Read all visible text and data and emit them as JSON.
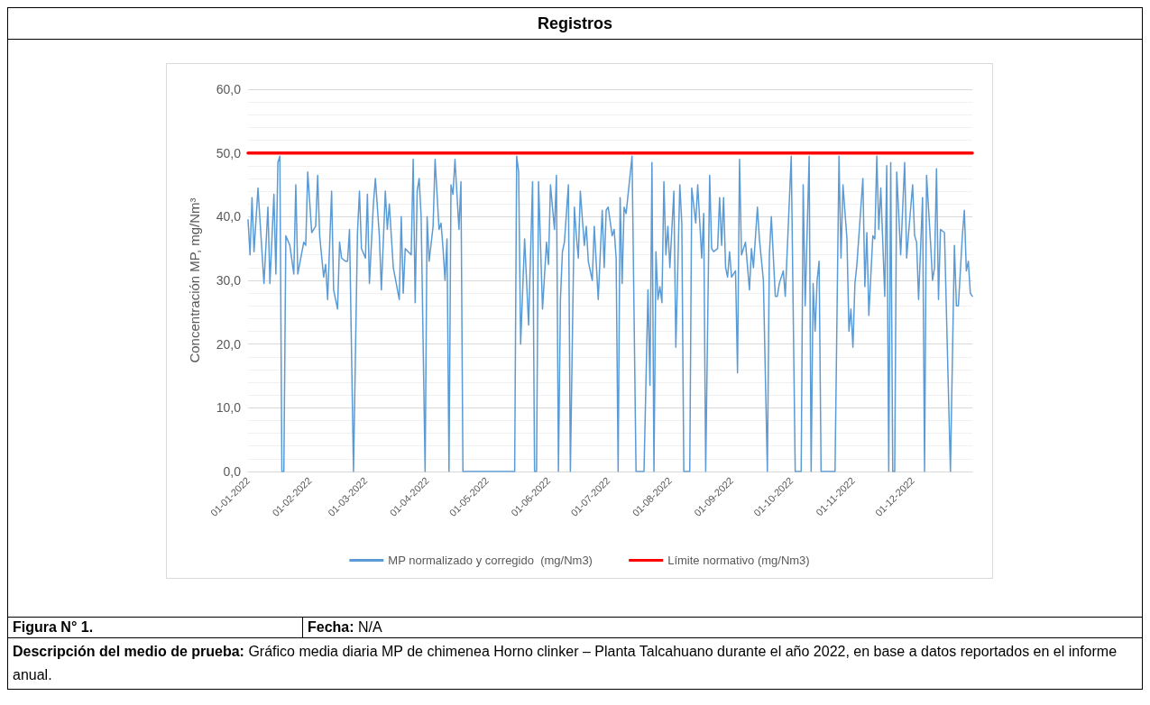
{
  "chart_data": {
    "type": "line",
    "title": "Registros",
    "ylabel": "Concentración MP, mg/Nm³",
    "annotations": [
      "Figura N° 1.",
      "Fecha: N/A",
      "Descripción del medio de prueba: Gráfico media diaria MP de chimenea Horno clinker – Planta Talcahuano durante el año 2022, en base a datos reportados en el informe anual."
    ],
    "xlim": [
      "2022-01-01",
      "2022-12-31"
    ],
    "xticks": [
      {
        "value": "2022-01-01",
        "label": "01-01-2022"
      },
      {
        "value": "2022-02-01",
        "label": "01-02-2022"
      },
      {
        "value": "2022-03-01",
        "label": "01-03-2022"
      },
      {
        "value": "2022-04-01",
        "label": "01-04-2022"
      },
      {
        "value": "2022-05-01",
        "label": "01-05-2022"
      },
      {
        "value": "2022-06-01",
        "label": "01-06-2022"
      },
      {
        "value": "2022-07-01",
        "label": "01-07-2022"
      },
      {
        "value": "2022-08-01",
        "label": "01-08-2022"
      },
      {
        "value": "2022-09-01",
        "label": "01-09-2022"
      },
      {
        "value": "2022-10-01",
        "label": "01-10-2022"
      },
      {
        "value": "2022-11-01",
        "label": "01-11-2022"
      },
      {
        "value": "2022-12-01",
        "label": "01-12-2022"
      }
    ],
    "ylim": [
      0,
      60
    ],
    "yticks": [
      {
        "value": 0,
        "label": "0,0"
      },
      {
        "value": 10,
        "label": "10,0"
      },
      {
        "value": 20,
        "label": "20,0"
      },
      {
        "value": 30,
        "label": "30,0"
      },
      {
        "value": 40,
        "label": "40,0"
      },
      {
        "value": 50,
        "label": "50,0"
      },
      {
        "value": 60,
        "label": "60,0"
      }
    ],
    "grid": "y",
    "legend": "bottom",
    "marker": "none",
    "line_style": "solid",
    "series": [
      {
        "name": "MP normalizado y corregido  (mg/Nm3)",
        "color": "#5b9bd5",
        "x": [
          "2022-01-01",
          "2022-01-02",
          "2022-01-03",
          "2022-01-04",
          "2022-01-06",
          "2022-01-09",
          "2022-01-11",
          "2022-01-12",
          "2022-01-14",
          "2022-01-15",
          "2022-01-16",
          "2022-01-17",
          "2022-01-18",
          "2022-01-19",
          "2022-01-20",
          "2022-01-22",
          "2022-01-24",
          "2022-01-25",
          "2022-01-26",
          "2022-01-29",
          "2022-01-30",
          "2022-01-31",
          "2022-02-02",
          "2022-02-04",
          "2022-02-05",
          "2022-02-06",
          "2022-02-08",
          "2022-02-09",
          "2022-02-10",
          "2022-02-12",
          "2022-02-13",
          "2022-02-15",
          "2022-02-16",
          "2022-02-17",
          "2022-02-19",
          "2022-02-20",
          "2022-02-21",
          "2022-02-23",
          "2022-02-25",
          "2022-02-26",
          "2022-02-27",
          "2022-03-01",
          "2022-03-02",
          "2022-03-03",
          "2022-03-05",
          "2022-03-06",
          "2022-03-08",
          "2022-03-09",
          "2022-03-11",
          "2022-03-12",
          "2022-03-13",
          "2022-03-15",
          "2022-03-18",
          "2022-03-19",
          "2022-03-20",
          "2022-03-21",
          "2022-03-24",
          "2022-03-25",
          "2022-03-26",
          "2022-03-27",
          "2022-03-28",
          "2022-03-29",
          "2022-03-31",
          "2022-04-01",
          "2022-04-02",
          "2022-04-04",
          "2022-04-05",
          "2022-04-07",
          "2022-04-08",
          "2022-04-09",
          "2022-04-10",
          "2022-04-11",
          "2022-04-12",
          "2022-04-13",
          "2022-04-14",
          "2022-04-15",
          "2022-04-17",
          "2022-04-18",
          "2022-04-19",
          "2022-05-15",
          "2022-05-16",
          "2022-05-17",
          "2022-05-18",
          "2022-05-20",
          "2022-05-22",
          "2022-05-24",
          "2022-05-25",
          "2022-05-26",
          "2022-05-27",
          "2022-05-29",
          "2022-05-31",
          "2022-06-01",
          "2022-06-02",
          "2022-06-04",
          "2022-06-05",
          "2022-06-06",
          "2022-06-07",
          "2022-06-08",
          "2022-06-09",
          "2022-06-11",
          "2022-06-12",
          "2022-06-14",
          "2022-06-15",
          "2022-06-16",
          "2022-06-17",
          "2022-06-19",
          "2022-06-20",
          "2022-06-21",
          "2022-06-23",
          "2022-06-24",
          "2022-06-26",
          "2022-06-28",
          "2022-06-29",
          "2022-06-30",
          "2022-07-01",
          "2022-07-03",
          "2022-07-04",
          "2022-07-05",
          "2022-07-06",
          "2022-07-07",
          "2022-07-08",
          "2022-07-09",
          "2022-07-10",
          "2022-07-13",
          "2022-07-15",
          "2022-07-19",
          "2022-07-21",
          "2022-07-22",
          "2022-07-23",
          "2022-07-24",
          "2022-07-25",
          "2022-07-26",
          "2022-07-27",
          "2022-07-28",
          "2022-07-29",
          "2022-07-30",
          "2022-07-31",
          "2022-08-01",
          "2022-08-03",
          "2022-08-04",
          "2022-08-06",
          "2022-08-07",
          "2022-08-08",
          "2022-08-11",
          "2022-08-12",
          "2022-08-14",
          "2022-08-15",
          "2022-08-17",
          "2022-08-18",
          "2022-08-19",
          "2022-08-21",
          "2022-08-22",
          "2022-08-23",
          "2022-08-25",
          "2022-08-26",
          "2022-08-27",
          "2022-08-28",
          "2022-08-29",
          "2022-08-30",
          "2022-08-31",
          "2022-09-01",
          "2022-09-03",
          "2022-09-04",
          "2022-09-05",
          "2022-09-06",
          "2022-09-08",
          "2022-09-10",
          "2022-09-11",
          "2022-09-12",
          "2022-09-14",
          "2022-09-15",
          "2022-09-17",
          "2022-09-19",
          "2022-09-20",
          "2022-09-21",
          "2022-09-23",
          "2022-09-24",
          "2022-09-25",
          "2022-09-27",
          "2022-09-28",
          "2022-10-01",
          "2022-10-03",
          "2022-10-06",
          "2022-10-07",
          "2022-10-08",
          "2022-10-10",
          "2022-10-11",
          "2022-10-12",
          "2022-10-13",
          "2022-10-14",
          "2022-10-15",
          "2022-10-16",
          "2022-10-23",
          "2022-10-25",
          "2022-10-26",
          "2022-10-27",
          "2022-10-29",
          "2022-10-30",
          "2022-10-31",
          "2022-11-01",
          "2022-11-02",
          "2022-11-03",
          "2022-11-06",
          "2022-11-07",
          "2022-11-08",
          "2022-11-09",
          "2022-11-11",
          "2022-11-12",
          "2022-11-13",
          "2022-11-14",
          "2022-11-15",
          "2022-11-17",
          "2022-11-18",
          "2022-11-19",
          "2022-11-20",
          "2022-11-21",
          "2022-11-22",
          "2022-11-23",
          "2022-11-25",
          "2022-11-27",
          "2022-11-28",
          "2022-11-29",
          "2022-12-01",
          "2022-12-02",
          "2022-12-03",
          "2022-12-04",
          "2022-12-06",
          "2022-12-07",
          "2022-12-08",
          "2022-12-10",
          "2022-12-11",
          "2022-12-12",
          "2022-12-13",
          "2022-12-14",
          "2022-12-15",
          "2022-12-17",
          "2022-12-20",
          "2022-12-22",
          "2022-12-23",
          "2022-12-24",
          "2022-12-26",
          "2022-12-27",
          "2022-12-28",
          "2022-12-29",
          "2022-12-30",
          "2022-12-31"
        ],
        "values": [
          39.5,
          34,
          43,
          34.5,
          44.5,
          29.5,
          41.5,
          29.5,
          43.5,
          31,
          48.5,
          49.5,
          0,
          0,
          37,
          35.5,
          31,
          45,
          31,
          36,
          35.5,
          47,
          37.5,
          38.5,
          46.5,
          37,
          30.5,
          32.5,
          27,
          44,
          28.5,
          25.5,
          36,
          33.5,
          33,
          33,
          38,
          0,
          37.5,
          44,
          35,
          33.5,
          43.5,
          29.5,
          42,
          46,
          37,
          28.5,
          44,
          38,
          42,
          32,
          27,
          40,
          28,
          35,
          34,
          49,
          26.5,
          44,
          46,
          40,
          0,
          40,
          33,
          38.5,
          49,
          38,
          39,
          35,
          30,
          36.5,
          0,
          45,
          43.5,
          49,
          38,
          45.5,
          0,
          0,
          49.5,
          47,
          20,
          36.5,
          23,
          45.5,
          0,
          0,
          45.5,
          25.5,
          36,
          32.5,
          45,
          38,
          46.5,
          0,
          27,
          34.5,
          36,
          45,
          0,
          41.5,
          37,
          33.5,
          44,
          35.5,
          38.5,
          33,
          30,
          38.5,
          27,
          41,
          32,
          41,
          41.5,
          37,
          38,
          33.5,
          0,
          43,
          29.5,
          41.5,
          40.5,
          49.5,
          0,
          0,
          28.5,
          13.5,
          48.5,
          0,
          34.5,
          27,
          29,
          26.5,
          45.5,
          34,
          38.5,
          32,
          44,
          19.5,
          45,
          39,
          0,
          0,
          44.5,
          39,
          45,
          33.5,
          40.5,
          0,
          46.5,
          35,
          34.5,
          35,
          43,
          35.5,
          43,
          32,
          30.5,
          34.5,
          30.5,
          31.5,
          15.5,
          49,
          34,
          36,
          28.5,
          35,
          32,
          41.5,
          36.5,
          30,
          0,
          34,
          40,
          27.5,
          27.5,
          29.5,
          31.5,
          27.5,
          49.5,
          0,
          0,
          45,
          26,
          49.5,
          0,
          29.5,
          22,
          30,
          33,
          0,
          0,
          49.5,
          33.5,
          45,
          36.5,
          22,
          25.5,
          19.5,
          29.5,
          32.5,
          46,
          29,
          37.5,
          24.5,
          37,
          36.5,
          49.5,
          38,
          44.5,
          27.5,
          48,
          0,
          48.5,
          0,
          0,
          47,
          34,
          48.5,
          33.5,
          37.5,
          45,
          37,
          36,
          27,
          43,
          0,
          46.5,
          36,
          30,
          32,
          47.5,
          27,
          38,
          37.5,
          0,
          35.5,
          26,
          26,
          37,
          41,
          31.5,
          33,
          28,
          27.5
        ]
      },
      {
        "name": "Límite normativo (mg/Nm3)",
        "color": "#ff0000",
        "x": [
          "2022-01-01",
          "2022-12-31"
        ],
        "values": [
          50,
          50
        ]
      }
    ]
  }
}
